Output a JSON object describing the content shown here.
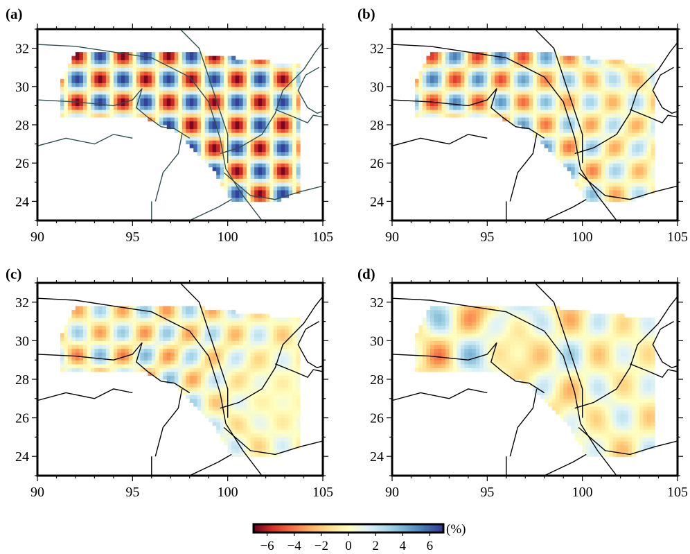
{
  "colorbar": {
    "unit": "(%)",
    "tick_labels": [
      "−6",
      "−4",
      "−2",
      "0",
      "2",
      "4",
      "6"
    ],
    "ticks": [
      -6,
      -4,
      -2,
      0,
      2,
      4,
      6
    ],
    "range": [
      -7,
      7
    ],
    "colors": [
      "#67001f",
      "#d73027",
      "#f46d43",
      "#fdae61",
      "#fee090",
      "#ffffbf",
      "#e0f3f8",
      "#abd9e9",
      "#74add1",
      "#4575b4",
      "#313695"
    ]
  },
  "chart_data": [
    {
      "type": "heatmap",
      "panel_label": "(a)",
      "xlim": [
        90,
        105
      ],
      "ylim": [
        23,
        33
      ],
      "x_ticks": [
        90,
        95,
        100,
        105
      ],
      "x_tick_labels": [
        "90",
        "95",
        "100",
        "105"
      ],
      "y_ticks": [
        24,
        26,
        28,
        30,
        32
      ],
      "y_tick_labels": [
        "24",
        "26",
        "28",
        "30",
        "32"
      ],
      "amplitude": 7.0,
      "checker_period": [
        1.2,
        1.2
      ]
    },
    {
      "type": "heatmap",
      "panel_label": "(b)",
      "xlim": [
        90,
        105
      ],
      "ylim": [
        23,
        33
      ],
      "x_ticks": [
        90,
        95,
        100,
        105
      ],
      "x_tick_labels": [
        "90",
        "95",
        "100",
        "105"
      ],
      "y_ticks": [
        24,
        26,
        28,
        30,
        32
      ],
      "y_tick_labels": [
        "24",
        "26",
        "28",
        "30",
        "32"
      ],
      "amplitude": 5.5,
      "checker_period": [
        1.2,
        1.2
      ]
    },
    {
      "type": "heatmap",
      "panel_label": "(c)",
      "xlim": [
        90,
        105
      ],
      "ylim": [
        23,
        33
      ],
      "x_ticks": [
        90,
        95,
        100,
        105
      ],
      "x_tick_labels": [
        "90",
        "95",
        "100",
        "105"
      ],
      "y_ticks": [
        24,
        26,
        28,
        30,
        32
      ],
      "y_tick_labels": [
        "24",
        "26",
        "28",
        "30",
        "32"
      ],
      "amplitude": 4.0,
      "checker_period": [
        1.2,
        1.2
      ]
    },
    {
      "type": "heatmap",
      "panel_label": "(d)",
      "xlim": [
        90,
        105
      ],
      "ylim": [
        23,
        33
      ],
      "x_ticks": [
        90,
        95,
        100,
        105
      ],
      "x_tick_labels": [
        "90",
        "95",
        "100",
        "105"
      ],
      "y_ticks": [
        24,
        26,
        28,
        30,
        32
      ],
      "y_tick_labels": [
        "24",
        "26",
        "28",
        "30",
        "32"
      ],
      "amplitude": 2.5,
      "checker_period": [
        2.4,
        2.4
      ]
    }
  ],
  "region_outline": [
    [
      91.2,
      28.5
    ],
    [
      91.2,
      30.2
    ],
    [
      92.0,
      31.8
    ],
    [
      98.0,
      31.8
    ],
    [
      103.8,
      31.1
    ],
    [
      103.8,
      24.5
    ],
    [
      102.5,
      24.0
    ],
    [
      100.2,
      24.0
    ],
    [
      99.2,
      25.8
    ],
    [
      97.0,
      27.8
    ],
    [
      95.5,
      28.4
    ],
    [
      91.2,
      28.5
    ]
  ],
  "fault_lines": [
    [
      [
        90,
        32.2
      ],
      [
        92.0,
        32.1
      ],
      [
        94.0,
        31.8
      ],
      [
        96.0,
        31.5
      ],
      [
        98.0,
        30.5
      ],
      [
        99.0,
        29.2
      ],
      [
        99.6,
        27.3
      ],
      [
        99.9,
        25.7
      ],
      [
        100.8,
        24.3
      ],
      [
        101.8,
        23.0
      ]
    ],
    [
      [
        90,
        29.3
      ],
      [
        92.0,
        29.2
      ],
      [
        94.0,
        29.0
      ],
      [
        95.0,
        29.3
      ],
      [
        95.5,
        29.9
      ],
      [
        95.2,
        28.9
      ],
      [
        95.8,
        28.4
      ],
      [
        96.5,
        27.9
      ],
      [
        97.2,
        27.8
      ],
      [
        98.0,
        27.3
      ]
    ],
    [
      [
        90,
        26.9
      ],
      [
        91.5,
        27.3
      ],
      [
        93.0,
        27.0
      ],
      [
        94.0,
        27.5
      ],
      [
        95.0,
        27.3
      ]
    ],
    [
      [
        96.2,
        24.0
      ],
      [
        96.6,
        25.5
      ],
      [
        97.4,
        26.5
      ],
      [
        97.6,
        27.5
      ]
    ],
    [
      [
        98.0,
        23.0
      ],
      [
        99.5,
        23.7
      ],
      [
        100.2,
        24.1
      ]
    ],
    [
      [
        96.0,
        23.0
      ],
      [
        96.0,
        24.0
      ]
    ],
    [
      [
        97.5,
        33.0
      ],
      [
        98.5,
        32.0
      ],
      [
        99.0,
        30.5
      ],
      [
        99.5,
        29.0
      ],
      [
        100.0,
        27.5
      ],
      [
        100.0,
        26.0
      ]
    ],
    [
      [
        99.6,
        26.5
      ],
      [
        100.6,
        26.8
      ],
      [
        101.8,
        27.5
      ],
      [
        102.5,
        28.6
      ],
      [
        102.9,
        29.8
      ],
      [
        104.0,
        30.9
      ],
      [
        104.6,
        31.8
      ],
      [
        105,
        32.3
      ]
    ],
    [
      [
        99.8,
        25.5
      ],
      [
        101.2,
        24.3
      ],
      [
        102.5,
        24.1
      ],
      [
        103.8,
        24.5
      ],
      [
        105,
        24.8
      ]
    ],
    [
      [
        102.5,
        28.8
      ],
      [
        103.5,
        28.4
      ],
      [
        104.2,
        28.1
      ],
      [
        104.5,
        28.5
      ],
      [
        105,
        28.4
      ]
    ],
    [
      [
        104.8,
        31.0
      ],
      [
        104.1,
        30.6
      ],
      [
        103.7,
        29.8
      ],
      [
        104.2,
        28.9
      ],
      [
        104.7,
        28.6
      ],
      [
        105,
        28.7
      ]
    ]
  ]
}
